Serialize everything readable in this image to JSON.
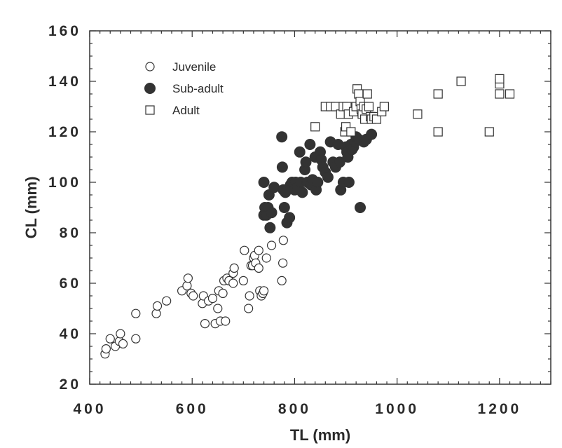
{
  "chart_data": {
    "type": "scatter",
    "title": "",
    "xlabel": "TL (mm)",
    "ylabel": "CL (mm)",
    "xlim": [
      400,
      1300
    ],
    "ylim": [
      20,
      160
    ],
    "xticks": [
      400,
      600,
      800,
      1000,
      1200
    ],
    "yticks": [
      20,
      40,
      60,
      80,
      100,
      120,
      140,
      160
    ],
    "grid": false,
    "legend_position": "top-left",
    "series": [
      {
        "name": "Juvenile",
        "marker": "open-circle",
        "color": "#333333",
        "points": [
          [
            430,
            32
          ],
          [
            432,
            34
          ],
          [
            440,
            38
          ],
          [
            450,
            35
          ],
          [
            458,
            37
          ],
          [
            460,
            40
          ],
          [
            465,
            36
          ],
          [
            490,
            38
          ],
          [
            490,
            48
          ],
          [
            530,
            48
          ],
          [
            532,
            51
          ],
          [
            550,
            53
          ],
          [
            580,
            57
          ],
          [
            590,
            59
          ],
          [
            592,
            62
          ],
          [
            598,
            56
          ],
          [
            602,
            55
          ],
          [
            620,
            52
          ],
          [
            622,
            55
          ],
          [
            625,
            44
          ],
          [
            632,
            53
          ],
          [
            640,
            54
          ],
          [
            645,
            44
          ],
          [
            650,
            50
          ],
          [
            652,
            57
          ],
          [
            655,
            45
          ],
          [
            660,
            56
          ],
          [
            662,
            61
          ],
          [
            665,
            45
          ],
          [
            668,
            62
          ],
          [
            672,
            61
          ],
          [
            680,
            60
          ],
          [
            680,
            64
          ],
          [
            682,
            66
          ],
          [
            700,
            61
          ],
          [
            702,
            73
          ],
          [
            710,
            50
          ],
          [
            712,
            55
          ],
          [
            715,
            67
          ],
          [
            718,
            67
          ],
          [
            720,
            70
          ],
          [
            722,
            71
          ],
          [
            724,
            68
          ],
          [
            730,
            66
          ],
          [
            730,
            73
          ],
          [
            732,
            57
          ],
          [
            735,
            55
          ],
          [
            738,
            56
          ],
          [
            740,
            57
          ],
          [
            745,
            70
          ],
          [
            755,
            75
          ],
          [
            775,
            61
          ],
          [
            777,
            68
          ],
          [
            778,
            77
          ]
        ]
      },
      {
        "name": "Sub-adult",
        "marker": "filled-circle",
        "color": "#333333",
        "points": [
          [
            740,
            100
          ],
          [
            740,
            87
          ],
          [
            742,
            90
          ],
          [
            745,
            87
          ],
          [
            748,
            90
          ],
          [
            750,
            95
          ],
          [
            752,
            82
          ],
          [
            755,
            88
          ],
          [
            760,
            98
          ],
          [
            775,
            118
          ],
          [
            776,
            106
          ],
          [
            778,
            97
          ],
          [
            780,
            90
          ],
          [
            782,
            96
          ],
          [
            785,
            84
          ],
          [
            790,
            86
          ],
          [
            792,
            99
          ],
          [
            795,
            100
          ],
          [
            800,
            97
          ],
          [
            802,
            100
          ],
          [
            805,
            98
          ],
          [
            810,
            112
          ],
          [
            812,
            100
          ],
          [
            815,
            96
          ],
          [
            820,
            105
          ],
          [
            822,
            108
          ],
          [
            825,
            100
          ],
          [
            830,
            115
          ],
          [
            832,
            99
          ],
          [
            835,
            101
          ],
          [
            840,
            110
          ],
          [
            842,
            97
          ],
          [
            845,
            100
          ],
          [
            850,
            112
          ],
          [
            852,
            109
          ],
          [
            855,
            106
          ],
          [
            860,
            104
          ],
          [
            865,
            102
          ],
          [
            870,
            116
          ],
          [
            875,
            108
          ],
          [
            880,
            106
          ],
          [
            885,
            115
          ],
          [
            888,
            108
          ],
          [
            890,
            97
          ],
          [
            895,
            100
          ],
          [
            900,
            114
          ],
          [
            902,
            112
          ],
          [
            904,
            110
          ],
          [
            906,
            100
          ],
          [
            910,
            115
          ],
          [
            912,
            113
          ],
          [
            915,
            114
          ],
          [
            918,
            116
          ],
          [
            920,
            118
          ],
          [
            925,
            117
          ],
          [
            928,
            90
          ],
          [
            935,
            116
          ],
          [
            940,
            117
          ],
          [
            950,
            119
          ]
        ]
      },
      {
        "name": "Adult",
        "marker": "open-square",
        "color": "#333333",
        "points": [
          [
            840,
            122
          ],
          [
            860,
            130
          ],
          [
            870,
            130
          ],
          [
            880,
            130
          ],
          [
            890,
            127
          ],
          [
            895,
            130
          ],
          [
            898,
            120
          ],
          [
            900,
            122
          ],
          [
            902,
            130
          ],
          [
            905,
            127
          ],
          [
            910,
            120
          ],
          [
            915,
            128
          ],
          [
            920,
            130
          ],
          [
            922,
            137
          ],
          [
            925,
            135
          ],
          [
            928,
            132
          ],
          [
            930,
            129
          ],
          [
            932,
            127
          ],
          [
            935,
            130
          ],
          [
            937,
            125
          ],
          [
            940,
            129
          ],
          [
            942,
            135
          ],
          [
            945,
            130
          ],
          [
            948,
            126
          ],
          [
            950,
            125
          ],
          [
            955,
            126
          ],
          [
            960,
            125
          ],
          [
            970,
            128
          ],
          [
            975,
            130
          ],
          [
            1040,
            127
          ],
          [
            1080,
            120
          ],
          [
            1080,
            135
          ],
          [
            1125,
            140
          ],
          [
            1180,
            120
          ],
          [
            1200,
            135
          ],
          [
            1200,
            139
          ],
          [
            1200,
            141
          ],
          [
            1220,
            135
          ]
        ]
      }
    ]
  }
}
